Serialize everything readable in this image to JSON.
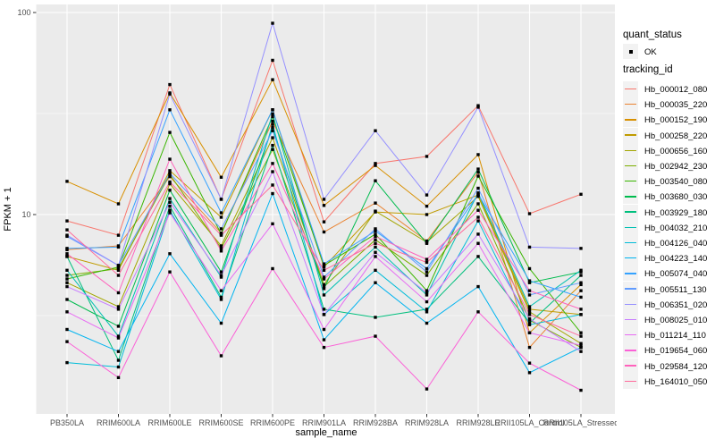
{
  "colors": {
    "panel_bg": "#EBEBEB",
    "grid_line": "#FFFFFF",
    "tick_mark": "#333333",
    "tick_label": "#4D4D4D",
    "legend_key_bg": "#F2F2F2",
    "point": "#000000"
  },
  "legend": {
    "quant_title": "quant_status",
    "quant_item_label": "OK",
    "tracking_title": "tracking_id"
  },
  "chart_data": {
    "type": "line",
    "title": "",
    "xlabel": "sample_name",
    "ylabel": "FPKM + 1",
    "y_scale": "log10",
    "ylim": [
      1.05,
      110
    ],
    "y_ticks": [
      100,
      10
    ],
    "y_minor_ticks": [
      31.62,
      3.162
    ],
    "grid": true,
    "legend_position": "right",
    "quant_status": "OK",
    "categories": [
      "PB350LA",
      "RRIM600LA",
      "RRIM600LE",
      "RRIM600SE",
      "RRIM600PE",
      "RRIM901LA",
      "RRIM928BA",
      "RRIM928LA",
      "RRIM928LE",
      "RRII105LA_Control",
      "RRII105LA_Stressed"
    ],
    "series": [
      {
        "name": "Hb_000012_080",
        "color": "#F8766D",
        "values": [
          9.3,
          7.9,
          44,
          11.9,
          58,
          9.2,
          17.9,
          19.4,
          34.6,
          10.1,
          12.6
        ]
      },
      {
        "name": "Hb_000035_220",
        "color": "#EA8331",
        "values": [
          6.7,
          7.0,
          15.4,
          8.1,
          29,
          8.2,
          11.4,
          7.4,
          16.2,
          2.2,
          4.2
        ]
      },
      {
        "name": "Hb_000152_190",
        "color": "#D89000",
        "values": [
          14.6,
          11.3,
          40,
          15.3,
          46.5,
          11.1,
          17.5,
          11.0,
          19.8,
          2.6,
          4.5
        ]
      },
      {
        "name": "Hb_000258_220",
        "color": "#C09B00",
        "values": [
          6.2,
          5.3,
          16.5,
          9.7,
          33,
          5.5,
          10.3,
          10.0,
          12.5,
          3.4,
          3.2
        ]
      },
      {
        "name": "Hb_000656_160",
        "color": "#A3A500",
        "values": [
          4.6,
          3.5,
          14.2,
          7.0,
          24,
          4.5,
          10.4,
          7.3,
          12.3,
          3.3,
          2.3
        ]
      },
      {
        "name": "Hb_002942_230",
        "color": "#7CAE00",
        "values": [
          5.0,
          5.4,
          15.8,
          6.8,
          21,
          4.4,
          7.5,
          5.0,
          11.3,
          3.0,
          2.2
        ]
      },
      {
        "name": "Hb_003540_080",
        "color": "#39B600",
        "values": [
          4.8,
          5.5,
          25.5,
          8.0,
          30.5,
          5.6,
          8.0,
          4.2,
          15.5,
          5.4,
          2.6
        ]
      },
      {
        "name": "Hb_003680_030",
        "color": "#00BB4E",
        "values": [
          3.8,
          2.8,
          13.2,
          5.2,
          27,
          4.3,
          14.7,
          7.2,
          16.8,
          4.6,
          5.2
        ]
      },
      {
        "name": "Hb_003929_180",
        "color": "#00BF7D",
        "values": [
          6.2,
          1.9,
          11.0,
          3.9,
          22,
          3.4,
          3.1,
          3.4,
          6.2,
          2.9,
          5.0
        ]
      },
      {
        "name": "Hb_004032_210",
        "color": "#00C0B2",
        "values": [
          5.3,
          2.5,
          12.0,
          4.9,
          31.5,
          4.0,
          6.9,
          4.0,
          12.8,
          3.5,
          5.3
        ]
      },
      {
        "name": "Hb_004126_040",
        "color": "#00BCD8",
        "values": [
          1.85,
          1.76,
          10.5,
          3.8,
          28,
          3.2,
          5.3,
          3.3,
          9.3,
          2.85,
          3.2
        ]
      },
      {
        "name": "Hb_004223_140",
        "color": "#00B4F0",
        "values": [
          2.7,
          2.1,
          6.4,
          2.9,
          12.7,
          2.4,
          4.6,
          2.9,
          4.4,
          1.65,
          2.2
        ]
      },
      {
        "name": "Hb_005074_040",
        "color": "#35A2FF",
        "values": [
          6.8,
          6.9,
          33,
          10.2,
          33,
          5.7,
          8.3,
          5.4,
          12.6,
          4.7,
          3.9
        ]
      },
      {
        "name": "Hb_005511_130",
        "color": "#619CFF",
        "values": [
          7.8,
          5.6,
          16.0,
          8.5,
          26,
          4.9,
          8.5,
          5.2,
          13.5,
          4.0,
          4.6
        ]
      },
      {
        "name": "Hb_006351_020",
        "color": "#9590FF",
        "values": [
          7.9,
          5.6,
          39.5,
          11.9,
          88.5,
          11.9,
          26,
          12.5,
          34.0,
          6.9,
          6.8
        ]
      },
      {
        "name": "Hb_008025_010",
        "color": "#C77CFF",
        "values": [
          4.4,
          3.4,
          11.5,
          5.0,
          16.3,
          3.2,
          6.5,
          4.1,
          8.0,
          3.05,
          2.1
        ]
      },
      {
        "name": "Hb_011214_110",
        "color": "#E76BF3",
        "values": [
          3.3,
          2.45,
          10.2,
          4.2,
          9.0,
          2.7,
          6.2,
          3.7,
          7.2,
          2.6,
          2.25
        ]
      },
      {
        "name": "Hb_019654_060",
        "color": "#FB61D7",
        "values": [
          2.35,
          1.56,
          5.2,
          2.0,
          5.4,
          2.2,
          2.5,
          1.37,
          3.3,
          1.84,
          1.35
        ]
      },
      {
        "name": "Hb_029584_120",
        "color": "#FF62BC",
        "values": [
          6.4,
          4.1,
          18.8,
          6.6,
          17.9,
          4.8,
          7.8,
          6.0,
          10.5,
          4.2,
          3.4
        ]
      },
      {
        "name": "Hb_164010_050",
        "color": "#FF6A9A",
        "values": [
          8.4,
          5.0,
          14.5,
          7.9,
          14.0,
          5.3,
          7.2,
          5.8,
          9.7,
          3.2,
          2.5
        ]
      }
    ]
  }
}
